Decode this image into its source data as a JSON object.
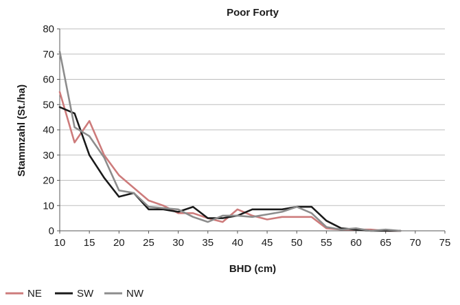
{
  "chart_data": {
    "type": "line",
    "title": "Poor Forty",
    "xlabel": "BHD (cm)",
    "ylabel": "Stammzahl (St./ha)",
    "xlim": [
      10,
      75
    ],
    "ylim": [
      0,
      80
    ],
    "xticks": [
      10,
      15,
      20,
      25,
      30,
      35,
      40,
      45,
      50,
      55,
      60,
      65,
      70,
      75
    ],
    "yticks": [
      0,
      10,
      20,
      30,
      40,
      50,
      60,
      70,
      80
    ],
    "grid": "horizontal",
    "legend_position": "bottom-left",
    "series": [
      {
        "name": "NE",
        "color": "#cd7b7b",
        "x": [
          10,
          12.5,
          15,
          17.5,
          20,
          22.5,
          25,
          27.5,
          30,
          32.5,
          35,
          37.5,
          40,
          42.5,
          45,
          47.5,
          50,
          52.5,
          55,
          57.5,
          60,
          62.5,
          65,
          67.5
        ],
        "y": [
          55,
          35,
          43.5,
          30,
          22,
          17,
          12,
          10,
          7,
          7,
          5,
          3.5,
          8.5,
          6,
          4.5,
          5.5,
          5.5,
          5.5,
          1,
          0.5,
          0.5,
          0.5,
          0,
          0
        ]
      },
      {
        "name": "SW",
        "color": "#1a1a1a",
        "x": [
          10,
          12.5,
          15,
          17.5,
          20,
          22.5,
          25,
          27.5,
          30,
          32.5,
          35,
          37.5,
          40,
          42.5,
          45,
          47.5,
          50,
          52.5,
          55,
          57.5,
          60,
          62.5,
          65,
          67.5
        ],
        "y": [
          49,
          46.5,
          30,
          21,
          13.5,
          15,
          8.5,
          8.5,
          7.5,
          9.5,
          5,
          5,
          6,
          8.5,
          8.5,
          8.5,
          9.5,
          9.5,
          4,
          1,
          0.5,
          0,
          0,
          0
        ]
      },
      {
        "name": "NW",
        "color": "#8c8c8c",
        "x": [
          10,
          12.5,
          15,
          17.5,
          20,
          22.5,
          25,
          27.5,
          30,
          32.5,
          35,
          37.5,
          40,
          42.5,
          45,
          47.5,
          50,
          52.5,
          55,
          57.5,
          60,
          62.5,
          65,
          67.5
        ],
        "y": [
          71,
          41,
          37.5,
          29,
          16,
          15,
          9.5,
          9,
          8.5,
          5.5,
          3.5,
          6,
          6,
          5.5,
          6.5,
          7.5,
          9.5,
          7,
          1.5,
          0.5,
          1,
          0,
          0.5,
          0
        ]
      }
    ]
  }
}
